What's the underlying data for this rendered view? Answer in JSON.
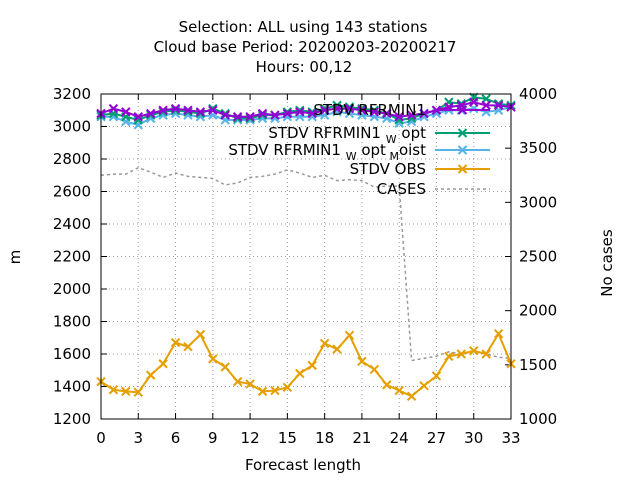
{
  "chart_data": {
    "type": "line",
    "title_lines": [
      "Selection: ALL using   143 stations",
      "Cloud base   Period: 20200203-20200217",
      "Hours:  00,12"
    ],
    "xlabel": "Forecast length",
    "ylabel": "m",
    "y2label": "No cases",
    "xlim": [
      0,
      33
    ],
    "ylim": [
      1200,
      3200
    ],
    "y2lim": [
      1000,
      4000
    ],
    "xticks": [
      0,
      3,
      6,
      9,
      12,
      15,
      18,
      21,
      24,
      27,
      30,
      33
    ],
    "yticks": [
      1200,
      1400,
      1600,
      1800,
      2000,
      2200,
      2400,
      2600,
      2800,
      3000,
      3200
    ],
    "y2ticks": [
      1000,
      1500,
      2000,
      2500,
      3000,
      3500,
      4000
    ],
    "grid": true,
    "legend_position": "top-right",
    "x": [
      0,
      1,
      2,
      3,
      4,
      5,
      6,
      7,
      8,
      9,
      10,
      11,
      12,
      13,
      14,
      15,
      16,
      17,
      18,
      19,
      20,
      21,
      22,
      23,
      24,
      25,
      26,
      27,
      28,
      29,
      30,
      31,
      32,
      33
    ],
    "series": [
      {
        "name": "STDV RFRMIN1",
        "axis": "y",
        "color": "#9400d3",
        "marker": "x",
        "values": [
          3080,
          3110,
          3090,
          3060,
          3080,
          3100,
          3110,
          3100,
          3090,
          3100,
          3070,
          3060,
          3060,
          3080,
          3070,
          3080,
          3090,
          3080,
          3100,
          3110,
          3110,
          3100,
          3090,
          3080,
          3060,
          3070,
          3080,
          3100,
          3120,
          3130,
          3150,
          3130,
          3130,
          3120
        ]
      },
      {
        "name": "STDV RFRMIN1 W opt",
        "label_base": "STDV RFRMIN1",
        "label_sub": "W",
        "label_tail": "opt",
        "axis": "y",
        "color": "#009e73",
        "marker": "x",
        "values": [
          3070,
          3080,
          3060,
          3040,
          3070,
          3090,
          3100,
          3090,
          3080,
          3110,
          3080,
          3050,
          3050,
          3070,
          3070,
          3090,
          3100,
          3090,
          3110,
          3130,
          3120,
          3110,
          3100,
          3080,
          3040,
          3050,
          3080,
          3100,
          3150,
          3140,
          3180,
          3170,
          3140,
          3130
        ]
      },
      {
        "name": "STDV RFRMIN1 W opt M oist",
        "label_base": "STDV RFRMIN1",
        "label_sub": "W",
        "label_tail": "opt",
        "label_sub2": "M",
        "label_tail2": "oist",
        "axis": "y",
        "color": "#56b4e9",
        "marker": "x",
        "values": [
          3060,
          3060,
          3030,
          3010,
          3050,
          3070,
          3080,
          3070,
          3060,
          3070,
          3040,
          3040,
          3040,
          3050,
          3050,
          3060,
          3060,
          3060,
          3070,
          3090,
          3080,
          3070,
          3060,
          3050,
          3020,
          3030,
          3060,
          3080,
          3100,
          3100,
          3110,
          3090,
          3100,
          3120
        ]
      },
      {
        "name": "STDV OBS",
        "axis": "y",
        "color": "#e69f00",
        "marker": "x",
        "values": [
          1430,
          1380,
          1370,
          1365,
          1470,
          1540,
          1670,
          1645,
          1720,
          1570,
          1520,
          1430,
          1415,
          1370,
          1375,
          1395,
          1480,
          1530,
          1665,
          1630,
          1715,
          1555,
          1505,
          1410,
          1375,
          1340,
          1405,
          1465,
          1585,
          1600,
          1620,
          1600,
          1725,
          1540
        ]
      },
      {
        "name": "CASES",
        "axis": "y2",
        "color": "#999999",
        "dash": true,
        "values": [
          3250,
          3260,
          3260,
          3320,
          3280,
          3230,
          3270,
          3240,
          3230,
          3220,
          3160,
          3180,
          3230,
          3240,
          3260,
          3300,
          3270,
          3230,
          3250,
          3200,
          3210,
          3200,
          3140,
          3150,
          3150,
          1540,
          1560,
          1580,
          1620,
          1600,
          1620,
          1600,
          1570,
          1560
        ]
      }
    ]
  }
}
